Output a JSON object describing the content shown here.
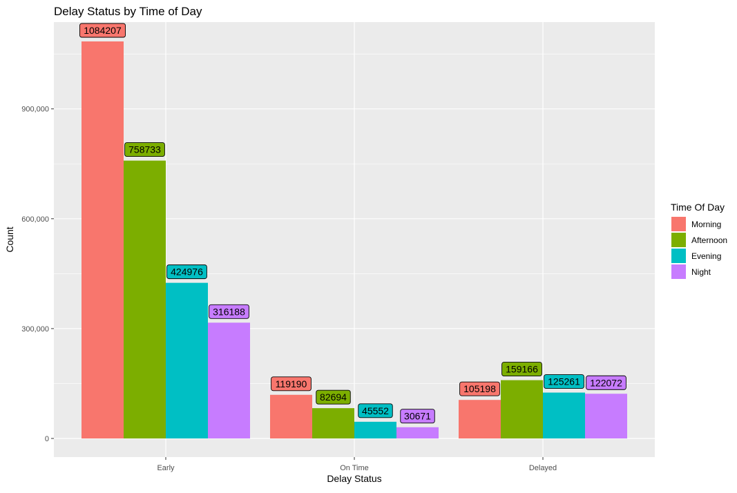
{
  "chart_data": {
    "type": "bar",
    "title": "Delay Status by Time of Day",
    "xlabel": "Delay Status",
    "ylabel": "Count",
    "categories": [
      "Early",
      "On Time",
      "Delayed"
    ],
    "ylim": [
      0,
      1084207
    ],
    "yticks": [
      0,
      300000,
      600000,
      900000
    ],
    "ytick_labels": [
      "0",
      "300,000",
      "600,000",
      "900,000"
    ],
    "grid": true,
    "legend": {
      "title": "Time Of Day",
      "position": "right"
    },
    "series": [
      {
        "name": "Morning",
        "color": "#F8766D",
        "values": [
          1084207,
          119190,
          105198
        ]
      },
      {
        "name": "Afternoon",
        "color": "#7CAE00",
        "values": [
          758733,
          82694,
          159166
        ]
      },
      {
        "name": "Evening",
        "color": "#00BFC4",
        "values": [
          424976,
          45552,
          125261
        ]
      },
      {
        "name": "Night",
        "color": "#C77CFF",
        "values": [
          316188,
          30671,
          122072
        ]
      }
    ]
  }
}
